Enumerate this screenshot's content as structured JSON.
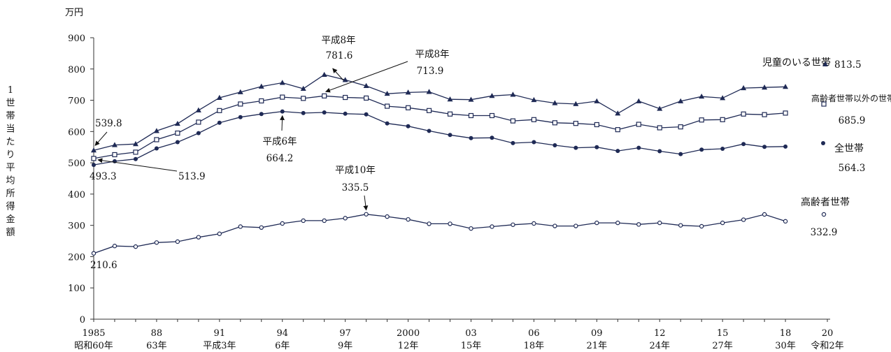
{
  "colors": {
    "line": "#1f2a55",
    "axis": "#333333",
    "text": "#111111"
  },
  "chart_data": {
    "type": "line",
    "y_unit_label": "万円",
    "ylabel": "1世帯当たり平均所得金額",
    "ylim": [
      0,
      900
    ],
    "yticks": [
      0,
      100,
      200,
      300,
      400,
      500,
      600,
      700,
      800,
      900
    ],
    "xlim": [
      1985,
      2020
    ],
    "x_tick_labels": [
      {
        "x": 1985,
        "top": "1985",
        "bottom": "昭和60年"
      },
      {
        "x": 1988,
        "top": "88",
        "bottom": "63年"
      },
      {
        "x": 1991,
        "top": "91",
        "bottom": "平成3年"
      },
      {
        "x": 1994,
        "top": "94",
        "bottom": "6年"
      },
      {
        "x": 1997,
        "top": "97",
        "bottom": "9年"
      },
      {
        "x": 2000,
        "top": "2000",
        "bottom": "12年"
      },
      {
        "x": 2003,
        "top": "03",
        "bottom": "15年"
      },
      {
        "x": 2006,
        "top": "06",
        "bottom": "18年"
      },
      {
        "x": 2009,
        "top": "09",
        "bottom": "21年"
      },
      {
        "x": 2012,
        "top": "12",
        "bottom": "24年"
      },
      {
        "x": 2015,
        "top": "15",
        "bottom": "27年"
      },
      {
        "x": 2018,
        "top": "18",
        "bottom": "30年"
      },
      {
        "x": 2020,
        "top": "20",
        "bottom": "令和2年"
      }
    ],
    "x": [
      1985,
      1986,
      1987,
      1988,
      1989,
      1990,
      1991,
      1992,
      1993,
      1994,
      1995,
      1996,
      1997,
      1998,
      1999,
      2000,
      2001,
      2002,
      2003,
      2004,
      2005,
      2006,
      2007,
      2008,
      2009,
      2010,
      2011,
      2012,
      2013,
      2014,
      2015,
      2016,
      2017,
      2018
    ],
    "series": [
      {
        "name": "児童のいる世帯",
        "marker": "triangle",
        "end_value": "813.5",
        "values": [
          539.8,
          557,
          560,
          602,
          625,
          668,
          708,
          726,
          744,
          756,
          737,
          781.6,
          765,
          746,
          721,
          725,
          727,
          703,
          702,
          714,
          718,
          701,
          691,
          688,
          697,
          658,
          697,
          673,
          697,
          712,
          707,
          739,
          741,
          743
        ]
      },
      {
        "name": "高齢者世帯以外の世帯",
        "marker": "square",
        "end_value": "685.9",
        "values": [
          513.9,
          526,
          534,
          574,
          595,
          630,
          667,
          688,
          698,
          710,
          706,
          713.9,
          709,
          707,
          681,
          676,
          667,
          656,
          651,
          651,
          634,
          638,
          628,
          626,
          622,
          606,
          623,
          612,
          615,
          637,
          638,
          656,
          654,
          659
        ]
      },
      {
        "name": "全世帯",
        "marker": "dot",
        "end_value": "564.3",
        "values": [
          493.3,
          505,
          512,
          546,
          566,
          595,
          628,
          646,
          656,
          664.2,
          659,
          661,
          657,
          655,
          626,
          617,
          602,
          589,
          579,
          580,
          563,
          566,
          556,
          548,
          550,
          538,
          548,
          537,
          528,
          542,
          545,
          560,
          551,
          552
        ]
      },
      {
        "name": "高齢者世帯",
        "marker": "circle",
        "end_value": "332.9",
        "values": [
          210.6,
          234,
          232,
          245,
          248,
          262,
          273,
          296,
          293,
          306,
          315,
          315,
          323,
          335.5,
          328,
          319,
          305,
          305,
          290,
          296,
          302,
          306,
          298,
          298,
          308,
          308,
          303,
          308,
          300,
          297,
          308,
          318,
          335,
          313
        ]
      }
    ],
    "annotations": [
      {
        "label": "539.8"
      },
      {
        "label": "493.3"
      },
      {
        "label": "513.9"
      },
      {
        "year": "平成6年",
        "label": "664.2"
      },
      {
        "year": "平成8年",
        "label": "781.6"
      },
      {
        "year": "平成8年",
        "label": "713.9"
      },
      {
        "year": "平成10年",
        "label": "335.5"
      },
      {
        "label": "210.6"
      }
    ]
  }
}
